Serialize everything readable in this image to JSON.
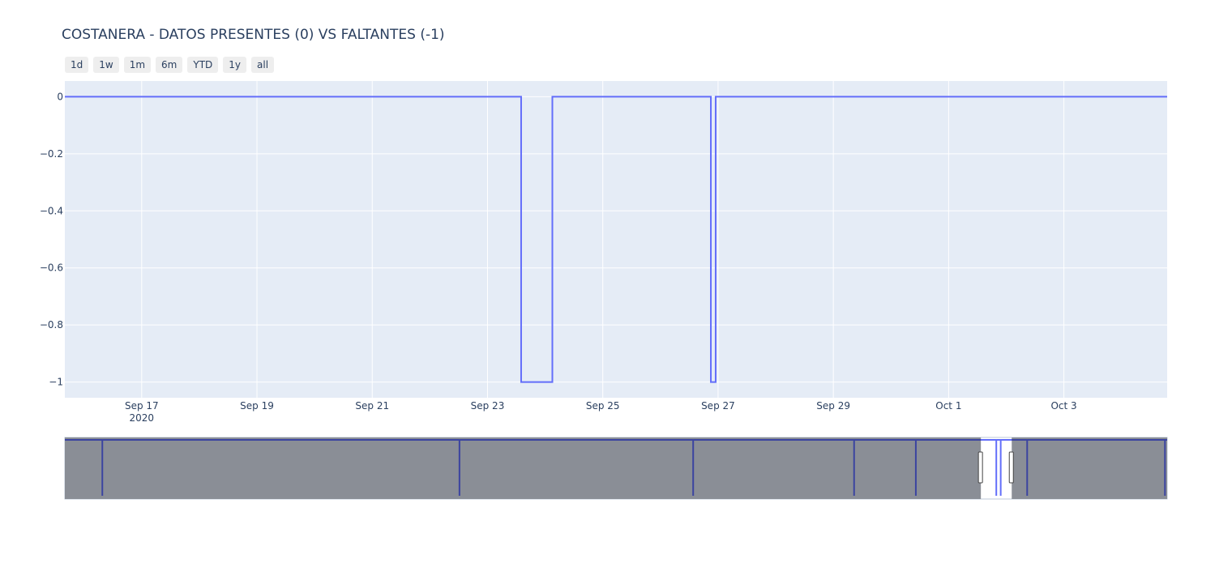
{
  "chart_data": {
    "type": "line",
    "title": "COSTANERA - DATOS PRESENTES (0) VS FALTANTES (-1)",
    "xlabel": "",
    "ylabel": "",
    "x_range": [
      "2020-09-15T16:00",
      "2020-10-04T19:00"
    ],
    "ylim": [
      -1.055,
      0.055
    ],
    "y_ticks": [
      0,
      -0.2,
      -0.4,
      -0.6,
      -0.8,
      -1
    ],
    "y_tick_labels": [
      "0",
      "−0.2",
      "−0.4",
      "−0.6",
      "−0.8",
      "−1"
    ],
    "x_ticks": [
      {
        "x": "2020-09-17",
        "label": "Sep 17",
        "sub": "2020"
      },
      {
        "x": "2020-09-19",
        "label": "Sep 19",
        "sub": ""
      },
      {
        "x": "2020-09-21",
        "label": "Sep 21",
        "sub": ""
      },
      {
        "x": "2020-09-23",
        "label": "Sep 23",
        "sub": ""
      },
      {
        "x": "2020-09-25",
        "label": "Sep 25",
        "sub": ""
      },
      {
        "x": "2020-09-27",
        "label": "Sep 27",
        "sub": ""
      },
      {
        "x": "2020-09-29",
        "label": "Sep 29",
        "sub": ""
      },
      {
        "x": "2020-10-01",
        "label": "Oct 1",
        "sub": ""
      },
      {
        "x": "2020-10-03",
        "label": "Oct 3",
        "sub": ""
      }
    ],
    "series": [
      {
        "line_shape": "step",
        "color": "#636efa",
        "points": [
          {
            "x": "2020-09-15T16:00",
            "y": 0
          },
          {
            "x": "2020-09-23T14:00",
            "y": -1
          },
          {
            "x": "2020-09-24T03:00",
            "y": 0
          },
          {
            "x": "2020-09-26T21:00",
            "y": -1
          },
          {
            "x": "2020-09-26T23:00",
            "y": 0
          },
          {
            "x": "2020-10-04T19:00",
            "y": 0
          }
        ]
      }
    ],
    "grid": true,
    "range_selector": [
      "1d",
      "1w",
      "1m",
      "6m",
      "YTD",
      "1y",
      "all"
    ],
    "range_slider": {
      "visible_fraction": [
        0.831,
        0.859
      ],
      "spike_positions": [
        0.034,
        0.358,
        0.57,
        0.716,
        0.772,
        0.845,
        0.849,
        0.873,
        0.998
      ]
    }
  },
  "colors": {
    "plot_bg": "#e5ecf6",
    "grid": "#ffffff",
    "line": "#636efa",
    "slider_mask": "#8a8e96",
    "slider_dark_line": "#3b44a0"
  }
}
